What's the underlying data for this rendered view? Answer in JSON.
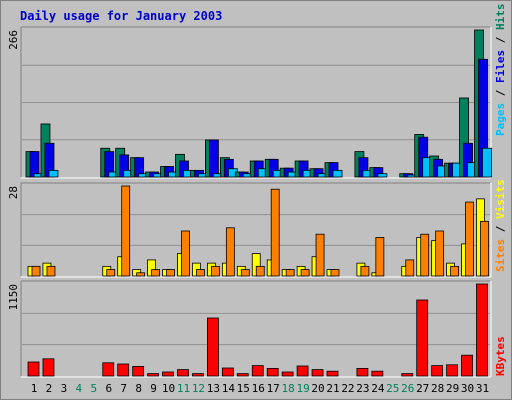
{
  "title": "Daily usage for January 2003",
  "colors": {
    "background": "#c0c0c0",
    "panel": "#c0c0c0",
    "grid": "#909090",
    "hits": "#00805c",
    "files": "#0000e6",
    "pages": "#00c0ff",
    "visits": "#ffff00",
    "sites": "#ff8000",
    "kbytes": "#ff0000",
    "weekday_label": "#000000",
    "weekend_label": "#00805c",
    "title": "#0000cc"
  },
  "legend": {
    "top": {
      "pages": "Pages",
      "files": "Files",
      "hits": "Hits",
      "sep": " / "
    },
    "middle": {
      "sites": "Sites",
      "visits": "Visits",
      "sep": " / "
    },
    "bottom": {
      "kbytes": "KBytes"
    }
  },
  "chart_data": [
    {
      "type": "bar",
      "panel": "hits-files-pages",
      "ymax_label": "266",
      "ylim": [
        0,
        266
      ],
      "categories": [
        "1",
        "2",
        "3",
        "4",
        "5",
        "6",
        "7",
        "8",
        "9",
        "10",
        "11",
        "12",
        "13",
        "14",
        "15",
        "16",
        "17",
        "18",
        "19",
        "20",
        "21",
        "22",
        "23",
        "24",
        "25",
        "26",
        "27",
        "28",
        "29",
        "30",
        "31"
      ],
      "series": [
        {
          "name": "Hits",
          "values": [
            46,
            96,
            0,
            0,
            0,
            52,
            52,
            35,
            9,
            19,
            41,
            12,
            67,
            35,
            9,
            29,
            32,
            16,
            29,
            15,
            26,
            0,
            46,
            17,
            0,
            6,
            77,
            38,
            25,
            143,
            266
          ]
        },
        {
          "name": "Files",
          "values": [
            46,
            61,
            0,
            0,
            0,
            46,
            40,
            35,
            9,
            19,
            29,
            12,
            67,
            32,
            9,
            29,
            32,
            16,
            29,
            15,
            26,
            0,
            35,
            17,
            0,
            6,
            72,
            32,
            25,
            61,
            213
          ]
        },
        {
          "name": "Pages",
          "values": [
            6,
            12,
            0,
            0,
            0,
            9,
            12,
            6,
            6,
            9,
            12,
            6,
            6,
            15,
            6,
            15,
            12,
            9,
            12,
            6,
            12,
            0,
            12,
            6,
            0,
            3,
            35,
            20,
            25,
            26,
            52
          ]
        }
      ]
    },
    {
      "type": "bar",
      "panel": "visits-sites",
      "ymax_label": "28",
      "ylim": [
        0,
        28
      ],
      "categories": [
        "1",
        "2",
        "3",
        "4",
        "5",
        "6",
        "7",
        "8",
        "9",
        "10",
        "11",
        "12",
        "13",
        "14",
        "15",
        "16",
        "17",
        "18",
        "19",
        "20",
        "21",
        "22",
        "23",
        "24",
        "25",
        "26",
        "27",
        "28",
        "29",
        "30",
        "31"
      ],
      "series": [
        {
          "name": "Visits",
          "values": [
            3,
            4,
            0,
            0,
            0,
            3,
            6,
            2,
            5,
            2,
            7,
            4,
            4,
            4,
            3,
            7,
            5,
            2,
            3,
            6,
            2,
            0,
            4,
            1,
            0,
            3,
            12,
            11,
            4,
            10,
            24
          ]
        },
        {
          "name": "Sites",
          "values": [
            3,
            3,
            0,
            0,
            0,
            2,
            28,
            1,
            2,
            2,
            14,
            2,
            3,
            15,
            2,
            3,
            27,
            2,
            2,
            13,
            2,
            0,
            3,
            12,
            0,
            5,
            13,
            14,
            3,
            23,
            17
          ]
        }
      ]
    },
    {
      "type": "bar",
      "panel": "kbytes",
      "ymax_label": "1150",
      "ylim": [
        0,
        1150
      ],
      "categories": [
        "1",
        "2",
        "3",
        "4",
        "5",
        "6",
        "7",
        "8",
        "9",
        "10",
        "11",
        "12",
        "13",
        "14",
        "15",
        "16",
        "17",
        "18",
        "19",
        "20",
        "21",
        "22",
        "23",
        "24",
        "25",
        "26",
        "27",
        "28",
        "29",
        "30",
        "31"
      ],
      "series": [
        {
          "name": "KBytes",
          "values": [
            175,
            215,
            0,
            0,
            0,
            165,
            150,
            120,
            30,
            50,
            80,
            30,
            725,
            100,
            30,
            130,
            95,
            50,
            125,
            80,
            60,
            0,
            95,
            60,
            0,
            30,
            950,
            130,
            140,
            260,
            1150
          ]
        }
      ]
    }
  ],
  "weekend_days": [
    "4",
    "5",
    "11",
    "12",
    "18",
    "19",
    "25",
    "26"
  ]
}
